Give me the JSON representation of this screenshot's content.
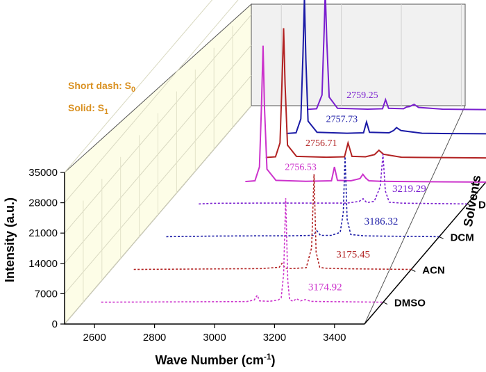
{
  "chart_data": {
    "type": "line",
    "subtype": "3d-waterfall",
    "xlabel": "Wave Number (cm",
    "xlabel_sup": "-1",
    "xlabel_end": ")",
    "ylabel": "Intensity (a.u.)",
    "zlabel": "Solvents",
    "xlim": [
      2500,
      3500
    ],
    "ylim": [
      0,
      35000
    ],
    "x_ticks": [
      2600,
      2800,
      3000,
      3200,
      3400
    ],
    "y_ticks": [
      0,
      7000,
      14000,
      21000,
      28000,
      35000
    ],
    "legend": {
      "short_dash_label": "Short dash: S",
      "short_dash_sub": "0",
      "solid_label": "Solid: S",
      "solid_sub": "1",
      "placement": "upper-left on back wall"
    },
    "colors": {
      "DMSO": "#cc33cc",
      "ACN": "#b22222",
      "DCM": "#1a1aa6",
      "DIO": "#7a1fcf",
      "wall": "#fdfde7"
    },
    "series": [
      {
        "name": "DMSO",
        "state": "S0",
        "style": "short-dash",
        "peak_label": "3174.92",
        "x": [
          3045,
          3070,
          3080,
          3088,
          3120,
          3150,
          3160,
          3168,
          3175,
          3182,
          3188,
          3200,
          3210,
          3225,
          3240,
          3260,
          3300
        ],
        "y": [
          150,
          500,
          1600,
          300,
          200,
          500,
          1000,
          6500,
          24000,
          5000,
          600,
          200,
          800,
          300,
          600,
          200,
          150
        ]
      },
      {
        "name": "ACN",
        "state": "S0",
        "style": "short-dash",
        "peak_label": "3175.45",
        "x": [
          2900,
          3000,
          3040,
          3060,
          3069,
          3080,
          3100,
          3150,
          3168,
          3176,
          3183,
          3195,
          3210,
          3260,
          3300
        ],
        "y": [
          150,
          200,
          400,
          500,
          1400,
          300,
          200,
          400,
          5000,
          22000,
          4000,
          500,
          300,
          200,
          150
        ]
      },
      {
        "name": "DCM",
        "state": "S0",
        "style": "short-dash",
        "peak_label": "3186.32",
        "x": [
          2750,
          2900,
          3000,
          3080,
          3092,
          3104,
          3140,
          3170,
          3180,
          3186,
          3193,
          3205,
          3250,
          3300
        ],
        "y": [
          150,
          200,
          200,
          300,
          1400,
          300,
          300,
          1000,
          5500,
          18500,
          4000,
          500,
          200,
          150
        ]
      },
      {
        "name": "DIO",
        "state": "S0",
        "style": "short-dash",
        "peak_label": "3219.29",
        "x": [
          2650,
          2800,
          3000,
          3100,
          3140,
          3153,
          3165,
          3190,
          3210,
          3219,
          3227,
          3240,
          3280,
          3320
        ],
        "y": [
          150,
          200,
          200,
          200,
          600,
          1200,
          300,
          600,
          4000,
          11500,
          3000,
          400,
          200,
          150
        ]
      },
      {
        "name": "DMSO",
        "state": "S1",
        "style": "solid",
        "peak_label": "2756.53",
        "x": [
          2700,
          2730,
          2745,
          2752,
          2757,
          2762,
          2770,
          2800,
          2900,
          2985,
          2995,
          3005,
          3050,
          3080,
          3090,
          3100,
          3110,
          3150,
          3200
        ],
        "y": [
          150,
          300,
          3500,
          18000,
          31500,
          17000,
          3000,
          400,
          200,
          300,
          3500,
          400,
          300,
          800,
          1800,
          900,
          300,
          200,
          150
        ]
      },
      {
        "name": "ACN",
        "state": "S1",
        "style": "solid",
        "peak_label": "2756.71",
        "x": [
          2700,
          2730,
          2745,
          2752,
          2757,
          2762,
          2770,
          2800,
          2900,
          2960,
          2972,
          2985,
          3030,
          3060,
          3075,
          3090,
          3150,
          3200
        ],
        "y": [
          150,
          300,
          3500,
          18000,
          30000,
          17000,
          3000,
          400,
          200,
          300,
          3500,
          400,
          300,
          800,
          1800,
          900,
          200,
          150
        ]
      },
      {
        "name": "DCM",
        "state": "S1",
        "style": "solid",
        "peak_label": "2757.73",
        "x": [
          2700,
          2730,
          2746,
          2753,
          2758,
          2763,
          2770,
          2800,
          2900,
          2955,
          2965,
          2975,
          3040,
          3055,
          3065,
          3080,
          3150,
          3200
        ],
        "y": [
          150,
          300,
          3500,
          18000,
          31500,
          17000,
          3000,
          400,
          200,
          300,
          2800,
          400,
          300,
          800,
          1500,
          800,
          200,
          150
        ]
      },
      {
        "name": "DIO",
        "state": "S1",
        "style": "solid",
        "peak_label": "2759.25",
        "x": [
          2700,
          2730,
          2748,
          2755,
          2759,
          2764,
          2772,
          2800,
          2900,
          2950,
          2960,
          2970,
          3020,
          3030,
          3040,
          3055,
          3070,
          3150,
          3200
        ],
        "y": [
          150,
          300,
          3500,
          18000,
          27500,
          16000,
          3000,
          400,
          200,
          300,
          2400,
          400,
          300,
          700,
          800,
          1300,
          600,
          200,
          150
        ]
      }
    ]
  }
}
